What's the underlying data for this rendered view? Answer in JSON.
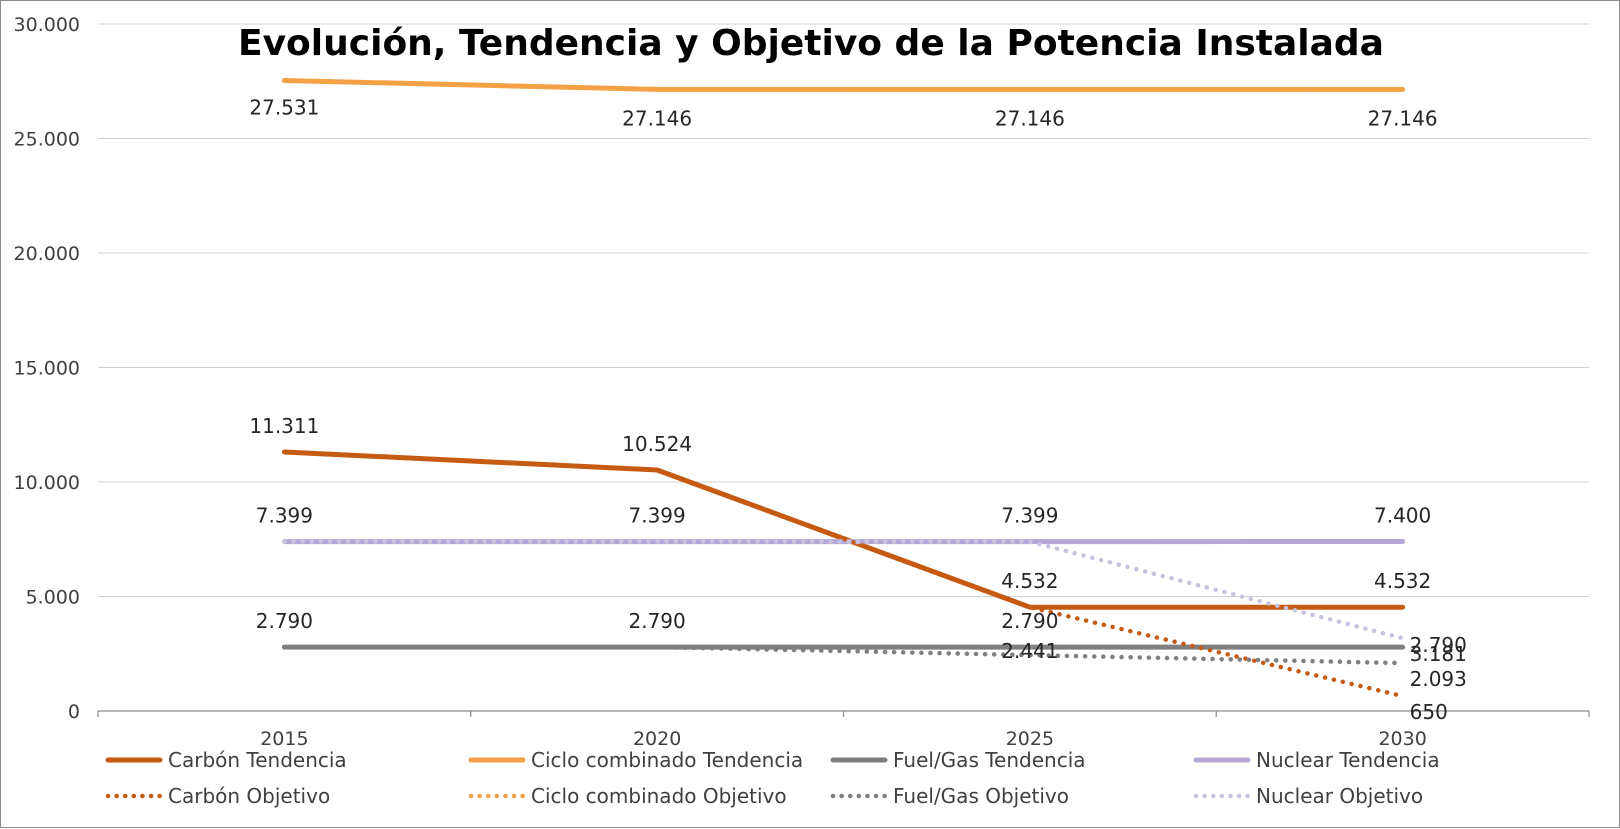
{
  "chart_data": {
    "type": "line",
    "title": "Evolución, Tendencia y Objetivo de la Potencia Instalada",
    "xlabel": "",
    "ylabel": "",
    "categories": [
      "2015",
      "2020",
      "2025",
      "2030"
    ],
    "ylim": [
      0,
      30000
    ],
    "yticks": [
      "0",
      "5.000",
      "10.000",
      "15.000",
      "20.000",
      "25.000",
      "30.000"
    ],
    "grid": true,
    "legend_position": "bottom",
    "series": [
      {
        "name": "Carbón Tendencia",
        "values": [
          11311,
          10524,
          4532,
          4532
        ],
        "labels": [
          "11.311",
          "10.524",
          "4.532",
          "4.532"
        ],
        "color": "#C55A11",
        "style": "solid"
      },
      {
        "name": "Ciclo combinado Tendencia",
        "values": [
          27531,
          27146,
          27146,
          27146
        ],
        "labels": [
          "27.531",
          "27.146",
          "27.146",
          "27.146"
        ],
        "color": "#F4A146",
        "style": "solid"
      },
      {
        "name": "Fuel/Gas Tendencia",
        "values": [
          2790,
          2790,
          2790,
          2790
        ],
        "labels": [
          "2.790",
          "2.790",
          "2.790",
          "2.790"
        ],
        "color": "#7F7F7F",
        "style": "solid"
      },
      {
        "name": "Nuclear Tendencia",
        "values": [
          7399,
          7399,
          7399,
          7400
        ],
        "labels": [
          "7.399",
          "7.399",
          "7.399",
          "7.400"
        ],
        "color": "#B4A7D6",
        "style": "solid"
      },
      {
        "name": "Carbón Objetivo",
        "values": [
          11311,
          10524,
          4532,
          650
        ],
        "labels": [
          "",
          "",
          "",
          "650"
        ],
        "color": "#C55A11",
        "style": "dotted"
      },
      {
        "name": "Ciclo combinado Objetivo",
        "values": [
          27531,
          27146,
          27146,
          27146
        ],
        "labels": [
          "",
          "",
          "",
          ""
        ],
        "color": "#F4A146",
        "style": "dotted"
      },
      {
        "name": "Fuel/Gas Objetivo",
        "values": [
          2790,
          2790,
          2441,
          2093
        ],
        "labels": [
          "",
          "",
          "2.441",
          "2.093"
        ],
        "color": "#7F7F7F",
        "style": "dotted"
      },
      {
        "name": "Nuclear Objetivo",
        "values": [
          7399,
          7399,
          7399,
          3181
        ],
        "labels": [
          "",
          "",
          "",
          "3.181"
        ],
        "color": "#C9C2DE",
        "style": "dotted"
      }
    ]
  }
}
